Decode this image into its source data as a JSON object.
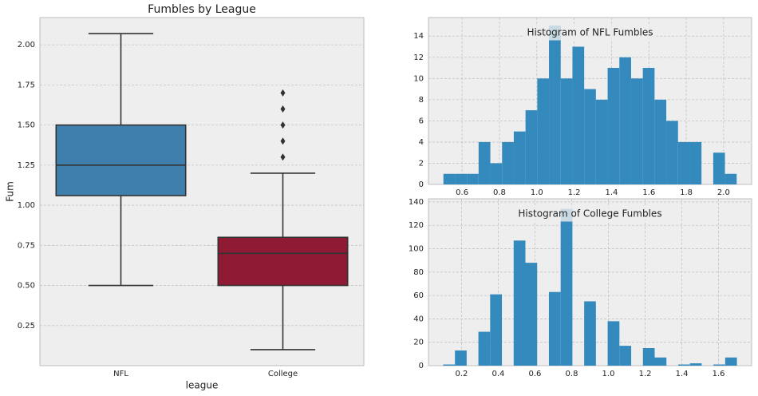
{
  "chart_data": [
    {
      "type": "box",
      "title": "Fumbles by League",
      "xlabel": "league",
      "ylabel": "Fum",
      "categories": [
        "NFL",
        "College"
      ],
      "boxes": [
        {
          "min": 0.5,
          "q1": 1.06,
          "median": 1.25,
          "q3": 1.5,
          "max": 2.07,
          "outliers": [],
          "color": "#3f7fad"
        },
        {
          "min": 0.1,
          "q1": 0.5,
          "median": 0.7,
          "q3": 0.8,
          "max": 1.2,
          "outliers": [
            1.3,
            1.4,
            1.5,
            1.6,
            1.7
          ],
          "color": "#8f1a33"
        }
      ],
      "ylim": [
        0.0,
        2.17
      ],
      "yticks": [
        {
          "value": 0.25,
          "label": "0.25"
        },
        {
          "value": 0.5,
          "label": "0.50"
        },
        {
          "value": 0.75,
          "label": "0.75"
        },
        {
          "value": 1.0,
          "label": "1.00"
        },
        {
          "value": 1.25,
          "label": "1.25"
        },
        {
          "value": 1.5,
          "label": "1.50"
        },
        {
          "value": 1.75,
          "label": "1.75"
        },
        {
          "value": 2.0,
          "label": "2.00"
        }
      ],
      "grid": true
    },
    {
      "type": "histogram",
      "title": "Histogram of NFL Fumbles",
      "color": "#348abd",
      "bins": [
        0.5,
        0.5628,
        0.6256,
        0.6884,
        0.7512,
        0.814,
        0.8768,
        0.9396,
        1.0024,
        1.0652,
        1.128,
        1.1908,
        1.2536,
        1.3164,
        1.3792,
        1.442,
        1.5048,
        1.5676,
        1.6304,
        1.6932,
        1.756,
        1.8188,
        1.8816,
        1.9444,
        2.0072,
        2.07
      ],
      "counts": [
        1,
        1,
        1,
        4,
        2,
        4,
        5,
        7,
        10,
        15,
        10,
        13,
        9,
        8,
        11,
        12,
        10,
        11,
        8,
        6,
        4,
        4,
        0,
        3,
        1
      ],
      "xlim": [
        0.42,
        2.15
      ],
      "xticks": [
        0.6,
        0.8,
        {
          "value": 1.0,
          "label": "1.0"
        },
        1.2,
        1.4,
        1.6,
        1.8,
        {
          "value": 2.0,
          "label": "2.0"
        }
      ],
      "ylim": [
        0,
        15.75
      ],
      "yticks": [
        0,
        2,
        4,
        6,
        8,
        10,
        12,
        14
      ],
      "grid": true
    },
    {
      "type": "histogram",
      "title": "Histogram of College Fumbles",
      "color": "#348abd",
      "bins": [
        0.1,
        0.164,
        0.228,
        0.292,
        0.356,
        0.42,
        0.484,
        0.548,
        0.612,
        0.676,
        0.74,
        0.804,
        0.868,
        0.932,
        0.996,
        1.06,
        1.124,
        1.188,
        1.252,
        1.316,
        1.38,
        1.444,
        1.508,
        1.572,
        1.636,
        1.7
      ],
      "counts": [
        1,
        13,
        0,
        29,
        61,
        0,
        107,
        88,
        0,
        63,
        134,
        0,
        55,
        0,
        38,
        17,
        0,
        15,
        7,
        0,
        1,
        2,
        0,
        1,
        7
      ],
      "xlim": [
        0.02,
        1.78
      ],
      "xticks": [
        0.2,
        0.4,
        0.6,
        0.8,
        {
          "value": 1.0,
          "label": "1.0"
        },
        1.2,
        1.4,
        1.6
      ],
      "ylim": [
        0,
        142.7
      ],
      "yticks": [
        0,
        20,
        40,
        60,
        80,
        100,
        120,
        140
      ],
      "grid": true
    }
  ]
}
